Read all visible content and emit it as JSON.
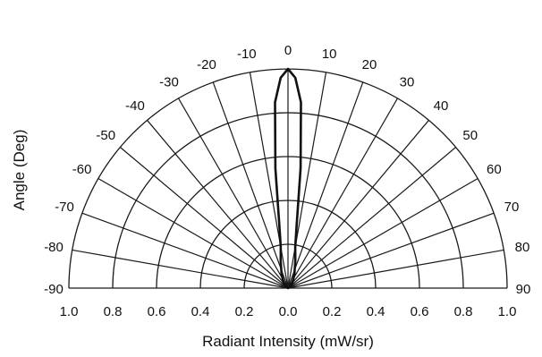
{
  "chart_data": {
    "type": "polar",
    "subtype": "half-polar radiation pattern",
    "xlabel": "Radiant Intensity (mW/sr)",
    "ylabel": "Angle (Deg)",
    "angle_ticks": [
      -90,
      -80,
      -70,
      -60,
      -50,
      -40,
      -30,
      -20,
      -10,
      0,
      10,
      20,
      30,
      40,
      50,
      60,
      70,
      80,
      90
    ],
    "radial_ticks": [
      0.0,
      0.2,
      0.4,
      0.6,
      0.8,
      1.0
    ],
    "radial_tick_labels": [
      "1.0",
      "0.8",
      "0.6",
      "0.4",
      "0.2",
      "0.0",
      "0.2",
      "0.4",
      "0.6",
      "0.8",
      "1.0"
    ],
    "rlim": [
      0,
      1.0
    ],
    "angle_range": [
      -90,
      90
    ],
    "grid": true,
    "series": [
      {
        "angles": [
          -90,
          -60,
          -40,
          -30,
          -25,
          -20,
          -15,
          -10,
          -8,
          -6,
          -4,
          -2,
          0,
          2,
          4,
          6,
          8,
          10,
          15,
          20,
          25,
          30,
          40,
          60,
          90
        ],
        "values": [
          0.0,
          0.01,
          0.03,
          0.05,
          0.07,
          0.09,
          0.13,
          0.19,
          0.28,
          0.55,
          0.85,
          0.96,
          1.0,
          0.96,
          0.85,
          0.55,
          0.28,
          0.19,
          0.13,
          0.09,
          0.07,
          0.05,
          0.03,
          0.01,
          0.0
        ]
      }
    ],
    "colors": {
      "grid": "#1a1a1a",
      "series": "#111111"
    }
  }
}
